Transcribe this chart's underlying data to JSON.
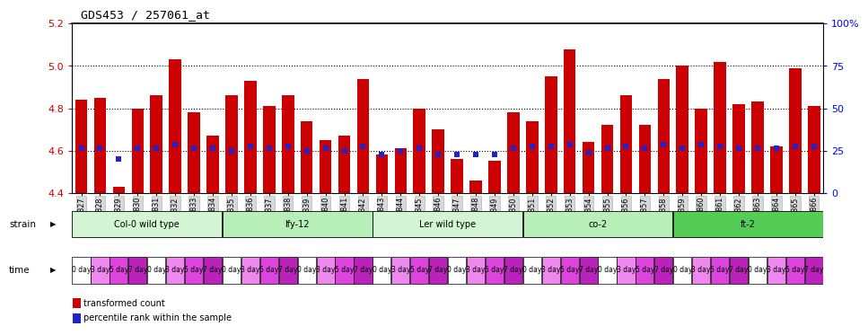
{
  "title": "GDS453 / 257061_at",
  "xlabels": [
    "GSM8827",
    "GSM8828",
    "GSM8829",
    "GSM8830",
    "GSM8831",
    "GSM8832",
    "GSM8833",
    "GSM8834",
    "GSM8835",
    "GSM8836",
    "GSM8837",
    "GSM8838",
    "GSM8839",
    "GSM8840",
    "GSM8841",
    "GSM8842",
    "GSM8843",
    "GSM8844",
    "GSM8845",
    "GSM8846",
    "GSM8847",
    "GSM8848",
    "GSM8849",
    "GSM8850",
    "GSM8851",
    "GSM8852",
    "GSM8853",
    "GSM8854",
    "GSM8855",
    "GSM8856",
    "GSM8857",
    "GSM8858",
    "GSM8859",
    "GSM8860",
    "GSM8861",
    "GSM8862",
    "GSM8863",
    "GSM8864",
    "GSM8865",
    "GSM8866"
  ],
  "bar_values": [
    4.84,
    4.85,
    4.43,
    4.8,
    4.86,
    5.03,
    4.78,
    4.67,
    4.86,
    4.93,
    4.81,
    4.86,
    4.74,
    4.65,
    4.67,
    4.94,
    4.58,
    4.61,
    4.8,
    4.7,
    4.56,
    4.46,
    4.55,
    4.78,
    4.74,
    4.95,
    5.08,
    4.64,
    4.72,
    4.86,
    4.72,
    4.94,
    5.0,
    4.8,
    5.02,
    4.82,
    4.83,
    4.62,
    4.99,
    4.81
  ],
  "percentile_values": [
    4.61,
    4.61,
    4.56,
    4.61,
    4.61,
    4.63,
    4.61,
    4.61,
    4.6,
    4.62,
    4.61,
    4.62,
    4.6,
    4.61,
    4.6,
    4.62,
    4.58,
    4.6,
    4.61,
    4.58,
    4.58,
    4.58,
    4.58,
    4.61,
    4.62,
    4.62,
    4.63,
    4.59,
    4.61,
    4.62,
    4.61,
    4.63,
    4.61,
    4.63,
    4.62,
    4.61,
    4.61,
    4.61,
    4.62,
    4.62
  ],
  "ylim": [
    4.4,
    5.2
  ],
  "yticks": [
    4.4,
    4.6,
    4.8,
    5.0,
    5.2
  ],
  "right_yticks": [
    0,
    25,
    50,
    75,
    100
  ],
  "right_ytick_labels": [
    "0",
    "25",
    "50",
    "75",
    "100%"
  ],
  "bar_color": "#cc0000",
  "dot_color": "#2222cc",
  "bg_color": "#ffffff",
  "xticklabel_bg": "#d8d8d8",
  "strains": [
    {
      "label": "Col-0 wild type",
      "start": 0,
      "end": 8,
      "color": "#d4f5d4"
    },
    {
      "label": "lfy-12",
      "start": 8,
      "end": 16,
      "color": "#b8eeb8"
    },
    {
      "label": "Ler wild type",
      "start": 16,
      "end": 24,
      "color": "#d4f5d4"
    },
    {
      "label": "co-2",
      "start": 24,
      "end": 32,
      "color": "#b8eeb8"
    },
    {
      "label": "ft-2",
      "start": 32,
      "end": 40,
      "color": "#55cc55"
    }
  ],
  "time_colors": {
    "0 day": "#ffffff",
    "3 day": "#ee88ee",
    "5 day": "#dd44dd",
    "7 day": "#bb22bb"
  },
  "time_cycle": [
    "0 day",
    "3 day",
    "5 day",
    "7 day"
  ]
}
